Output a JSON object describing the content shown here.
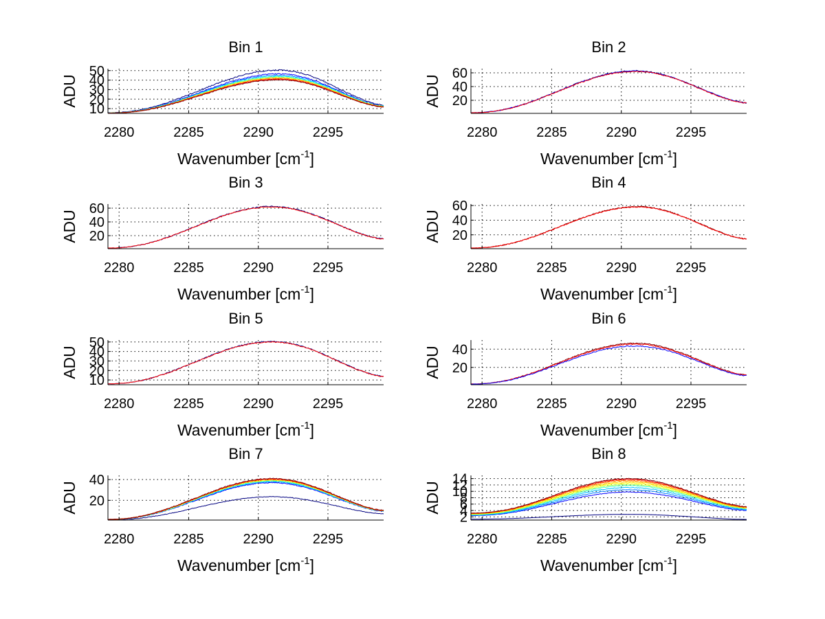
{
  "chart_data": [
    {
      "type": "line",
      "title": "Bin 1",
      "xlabel": "Wavenumber [cm",
      "xlabel_sup": "-1",
      "xlabel_end": "]",
      "ylabel": "ADU",
      "xlim": [
        2279.2,
        2299.0
      ],
      "ylim": [
        5,
        52
      ],
      "xticks": [
        2280,
        2285,
        2290,
        2295
      ],
      "yticks": [
        10,
        20,
        30,
        40,
        50
      ],
      "x_peak": 2291.5,
      "series": [
        {
          "peak": 50.5,
          "base": 5.8,
          "end": 13.8,
          "color": "#000080"
        },
        {
          "peak": 46.5,
          "base": 5.6,
          "end": 13.2,
          "color": "#0000ff"
        },
        {
          "peak": 45.0,
          "base": 5.5,
          "end": 12.9,
          "color": "#0080ff"
        },
        {
          "peak": 44.0,
          "base": 5.5,
          "end": 12.7,
          "color": "#00ffff"
        },
        {
          "peak": 43.2,
          "base": 5.4,
          "end": 12.5,
          "color": "#80ff80"
        },
        {
          "peak": 42.5,
          "base": 5.4,
          "end": 12.3,
          "color": "#ffff00"
        },
        {
          "peak": 41.8,
          "base": 5.3,
          "end": 12.1,
          "color": "#ff8000"
        },
        {
          "peak": 41.0,
          "base": 5.3,
          "end": 11.9,
          "color": "#ff0000"
        },
        {
          "peak": 40.3,
          "base": 5.2,
          "end": 11.7,
          "color": "#800000"
        }
      ]
    },
    {
      "type": "line",
      "title": "Bin 2",
      "xlabel": "Wavenumber [cm",
      "xlabel_sup": "-1",
      "xlabel_end": "]",
      "ylabel": "ADU",
      "xlim": [
        2279.2,
        2299.0
      ],
      "ylim": [
        1,
        66
      ],
      "xticks": [
        2280,
        2285,
        2290,
        2295
      ],
      "yticks": [
        20,
        40,
        60
      ],
      "x_peak": 2291.0,
      "series": [
        {
          "peak": 63.0,
          "base": 2.0,
          "end": 16.5,
          "color": "#000080"
        },
        {
          "peak": 62.5,
          "base": 2.0,
          "end": 16.3,
          "color": "#0000ff"
        },
        {
          "peak": 62.0,
          "base": 1.9,
          "end": 16.1,
          "color": "#ff0000"
        }
      ]
    },
    {
      "type": "line",
      "title": "Bin 3",
      "xlabel": "Wavenumber [cm",
      "xlabel_sup": "-1",
      "xlabel_end": "]",
      "ylabel": "ADU",
      "xlim": [
        2279.2,
        2299.0
      ],
      "ylim": [
        1,
        66
      ],
      "xticks": [
        2280,
        2285,
        2290,
        2295
      ],
      "yticks": [
        20,
        40,
        60
      ],
      "x_peak": 2291.0,
      "series": [
        {
          "peak": 62.5,
          "base": 2.0,
          "end": 15.5,
          "color": "#000080"
        },
        {
          "peak": 62.0,
          "base": 2.0,
          "end": 15.3,
          "color": "#ff0000"
        }
      ]
    },
    {
      "type": "line",
      "title": "Bin 4",
      "xlabel": "Wavenumber [cm",
      "xlabel_sup": "-1",
      "xlabel_end": "]",
      "ylabel": "ADU",
      "xlim": [
        2279.2,
        2299.0
      ],
      "ylim": [
        1,
        62
      ],
      "xticks": [
        2280,
        2285,
        2290,
        2295
      ],
      "yticks": [
        20,
        40,
        60
      ],
      "x_peak": 2291.2,
      "series": [
        {
          "peak": 58.5,
          "base": 2.0,
          "end": 14.5,
          "color": "#800000"
        },
        {
          "peak": 58.0,
          "base": 2.0,
          "end": 14.3,
          "color": "#ff0000"
        }
      ]
    },
    {
      "type": "line",
      "title": "Bin 5",
      "xlabel": "Wavenumber [cm",
      "xlabel_sup": "-1",
      "xlabel_end": "]",
      "ylabel": "ADU",
      "xlim": [
        2279.2,
        2299.0
      ],
      "ylim": [
        5,
        52
      ],
      "xticks": [
        2280,
        2285,
        2290,
        2295
      ],
      "yticks": [
        10,
        20,
        30,
        40,
        50
      ],
      "x_peak": 2291.0,
      "series": [
        {
          "peak": 50.5,
          "base": 6.0,
          "end": 14.0,
          "color": "#000080"
        },
        {
          "peak": 50.0,
          "base": 6.0,
          "end": 13.8,
          "color": "#ff0000"
        }
      ]
    },
    {
      "type": "line",
      "title": "Bin 6",
      "xlabel": "Wavenumber [cm",
      "xlabel_sup": "-1",
      "xlabel_end": "]",
      "ylabel": "ADU",
      "xlim": [
        2279.2,
        2299.0
      ],
      "ylim": [
        1,
        50
      ],
      "xticks": [
        2280,
        2285,
        2290,
        2295
      ],
      "yticks": [
        20,
        40
      ],
      "x_peak": 2291.0,
      "series": [
        {
          "peak": 46.5,
          "base": 1.8,
          "end": 11.8,
          "color": "#800000"
        },
        {
          "peak": 45.5,
          "base": 1.8,
          "end": 11.5,
          "color": "#ff0000"
        },
        {
          "peak": 43.5,
          "base": 1.7,
          "end": 11.0,
          "color": "#0000ff"
        }
      ]
    },
    {
      "type": "line",
      "title": "Bin 7",
      "xlabel": "Wavenumber [cm",
      "xlabel_sup": "-1",
      "xlabel_end": "]",
      "ylabel": "ADU",
      "xlim": [
        2279.2,
        2299.0
      ],
      "ylim": [
        1,
        44
      ],
      "xticks": [
        2280,
        2285,
        2290,
        2295
      ],
      "yticks": [
        20,
        40
      ],
      "x_peak": 2291.0,
      "series": [
        {
          "peak": 23.5,
          "base": 1.2,
          "end": 7.0,
          "color": "#000080"
        },
        {
          "peak": 37.0,
          "base": 1.5,
          "end": 9.5,
          "color": "#0000ff"
        },
        {
          "peak": 37.8,
          "base": 1.5,
          "end": 9.7,
          "color": "#0080ff"
        },
        {
          "peak": 38.5,
          "base": 1.6,
          "end": 9.9,
          "color": "#00ffff"
        },
        {
          "peak": 39.0,
          "base": 1.6,
          "end": 10.0,
          "color": "#80ff80"
        },
        {
          "peak": 39.5,
          "base": 1.6,
          "end": 10.1,
          "color": "#ffff00"
        },
        {
          "peak": 40.0,
          "base": 1.7,
          "end": 10.2,
          "color": "#ff8000"
        },
        {
          "peak": 40.5,
          "base": 1.7,
          "end": 10.3,
          "color": "#ff0000"
        },
        {
          "peak": 41.0,
          "base": 1.7,
          "end": 10.4,
          "color": "#800000"
        }
      ]
    },
    {
      "type": "line",
      "title": "Bin 8",
      "xlabel": "Wavenumber [cm",
      "xlabel_sup": "-1",
      "xlabel_end": "]",
      "ylabel": "ADU",
      "xlim": [
        2279.2,
        2299.0
      ],
      "ylim": [
        1,
        15
      ],
      "xticks": [
        2280,
        2285,
        2290,
        2295
      ],
      "yticks": [
        2,
        4,
        6,
        8,
        10,
        12,
        14
      ],
      "x_peak": 2290.5,
      "series": [
        {
          "peak": 2.8,
          "base": 1.3,
          "end": 1.2,
          "color": "#000080"
        },
        {
          "peak": 9.8,
          "base": 2.4,
          "end": 4.0,
          "color": "#0000ff"
        },
        {
          "peak": 10.5,
          "base": 2.5,
          "end": 4.2,
          "color": "#0080ff"
        },
        {
          "peak": 11.2,
          "base": 2.6,
          "end": 4.4,
          "color": "#00c0ff"
        },
        {
          "peak": 11.8,
          "base": 2.7,
          "end": 4.6,
          "color": "#40ffc0"
        },
        {
          "peak": 12.2,
          "base": 2.8,
          "end": 4.7,
          "color": "#c0ff40"
        },
        {
          "peak": 12.6,
          "base": 2.9,
          "end": 4.8,
          "color": "#ffff00"
        },
        {
          "peak": 13.0,
          "base": 3.0,
          "end": 4.9,
          "color": "#ffc000"
        },
        {
          "peak": 13.4,
          "base": 3.1,
          "end": 5.0,
          "color": "#ff8000"
        },
        {
          "peak": 13.7,
          "base": 3.1,
          "end": 5.1,
          "color": "#ff0000"
        },
        {
          "peak": 14.0,
          "base": 3.2,
          "end": 5.2,
          "color": "#800000"
        }
      ]
    }
  ]
}
